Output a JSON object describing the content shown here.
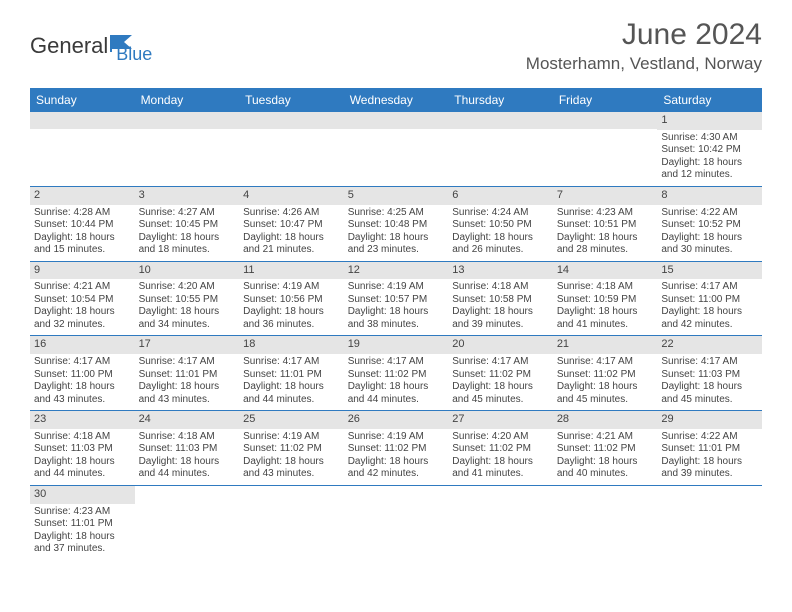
{
  "logo": {
    "text1": "General",
    "text2": "Blue"
  },
  "title": "June 2024",
  "location": "Mosterhamn, Vestland, Norway",
  "colors": {
    "accent": "#2f7ac0",
    "dayNumBg": "#e5e5e5",
    "text": "#444444"
  },
  "dayHeaders": [
    "Sunday",
    "Monday",
    "Tuesday",
    "Wednesday",
    "Thursday",
    "Friday",
    "Saturday"
  ],
  "weeks": [
    [
      null,
      null,
      null,
      null,
      null,
      null,
      {
        "n": "1",
        "sr": "Sunrise: 4:30 AM",
        "ss": "Sunset: 10:42 PM",
        "dl1": "Daylight: 18 hours",
        "dl2": "and 12 minutes."
      }
    ],
    [
      {
        "n": "2",
        "sr": "Sunrise: 4:28 AM",
        "ss": "Sunset: 10:44 PM",
        "dl1": "Daylight: 18 hours",
        "dl2": "and 15 minutes."
      },
      {
        "n": "3",
        "sr": "Sunrise: 4:27 AM",
        "ss": "Sunset: 10:45 PM",
        "dl1": "Daylight: 18 hours",
        "dl2": "and 18 minutes."
      },
      {
        "n": "4",
        "sr": "Sunrise: 4:26 AM",
        "ss": "Sunset: 10:47 PM",
        "dl1": "Daylight: 18 hours",
        "dl2": "and 21 minutes."
      },
      {
        "n": "5",
        "sr": "Sunrise: 4:25 AM",
        "ss": "Sunset: 10:48 PM",
        "dl1": "Daylight: 18 hours",
        "dl2": "and 23 minutes."
      },
      {
        "n": "6",
        "sr": "Sunrise: 4:24 AM",
        "ss": "Sunset: 10:50 PM",
        "dl1": "Daylight: 18 hours",
        "dl2": "and 26 minutes."
      },
      {
        "n": "7",
        "sr": "Sunrise: 4:23 AM",
        "ss": "Sunset: 10:51 PM",
        "dl1": "Daylight: 18 hours",
        "dl2": "and 28 minutes."
      },
      {
        "n": "8",
        "sr": "Sunrise: 4:22 AM",
        "ss": "Sunset: 10:52 PM",
        "dl1": "Daylight: 18 hours",
        "dl2": "and 30 minutes."
      }
    ],
    [
      {
        "n": "9",
        "sr": "Sunrise: 4:21 AM",
        "ss": "Sunset: 10:54 PM",
        "dl1": "Daylight: 18 hours",
        "dl2": "and 32 minutes."
      },
      {
        "n": "10",
        "sr": "Sunrise: 4:20 AM",
        "ss": "Sunset: 10:55 PM",
        "dl1": "Daylight: 18 hours",
        "dl2": "and 34 minutes."
      },
      {
        "n": "11",
        "sr": "Sunrise: 4:19 AM",
        "ss": "Sunset: 10:56 PM",
        "dl1": "Daylight: 18 hours",
        "dl2": "and 36 minutes."
      },
      {
        "n": "12",
        "sr": "Sunrise: 4:19 AM",
        "ss": "Sunset: 10:57 PM",
        "dl1": "Daylight: 18 hours",
        "dl2": "and 38 minutes."
      },
      {
        "n": "13",
        "sr": "Sunrise: 4:18 AM",
        "ss": "Sunset: 10:58 PM",
        "dl1": "Daylight: 18 hours",
        "dl2": "and 39 minutes."
      },
      {
        "n": "14",
        "sr": "Sunrise: 4:18 AM",
        "ss": "Sunset: 10:59 PM",
        "dl1": "Daylight: 18 hours",
        "dl2": "and 41 minutes."
      },
      {
        "n": "15",
        "sr": "Sunrise: 4:17 AM",
        "ss": "Sunset: 11:00 PM",
        "dl1": "Daylight: 18 hours",
        "dl2": "and 42 minutes."
      }
    ],
    [
      {
        "n": "16",
        "sr": "Sunrise: 4:17 AM",
        "ss": "Sunset: 11:00 PM",
        "dl1": "Daylight: 18 hours",
        "dl2": "and 43 minutes."
      },
      {
        "n": "17",
        "sr": "Sunrise: 4:17 AM",
        "ss": "Sunset: 11:01 PM",
        "dl1": "Daylight: 18 hours",
        "dl2": "and 43 minutes."
      },
      {
        "n": "18",
        "sr": "Sunrise: 4:17 AM",
        "ss": "Sunset: 11:01 PM",
        "dl1": "Daylight: 18 hours",
        "dl2": "and 44 minutes."
      },
      {
        "n": "19",
        "sr": "Sunrise: 4:17 AM",
        "ss": "Sunset: 11:02 PM",
        "dl1": "Daylight: 18 hours",
        "dl2": "and 44 minutes."
      },
      {
        "n": "20",
        "sr": "Sunrise: 4:17 AM",
        "ss": "Sunset: 11:02 PM",
        "dl1": "Daylight: 18 hours",
        "dl2": "and 45 minutes."
      },
      {
        "n": "21",
        "sr": "Sunrise: 4:17 AM",
        "ss": "Sunset: 11:02 PM",
        "dl1": "Daylight: 18 hours",
        "dl2": "and 45 minutes."
      },
      {
        "n": "22",
        "sr": "Sunrise: 4:17 AM",
        "ss": "Sunset: 11:03 PM",
        "dl1": "Daylight: 18 hours",
        "dl2": "and 45 minutes."
      }
    ],
    [
      {
        "n": "23",
        "sr": "Sunrise: 4:18 AM",
        "ss": "Sunset: 11:03 PM",
        "dl1": "Daylight: 18 hours",
        "dl2": "and 44 minutes."
      },
      {
        "n": "24",
        "sr": "Sunrise: 4:18 AM",
        "ss": "Sunset: 11:03 PM",
        "dl1": "Daylight: 18 hours",
        "dl2": "and 44 minutes."
      },
      {
        "n": "25",
        "sr": "Sunrise: 4:19 AM",
        "ss": "Sunset: 11:02 PM",
        "dl1": "Daylight: 18 hours",
        "dl2": "and 43 minutes."
      },
      {
        "n": "26",
        "sr": "Sunrise: 4:19 AM",
        "ss": "Sunset: 11:02 PM",
        "dl1": "Daylight: 18 hours",
        "dl2": "and 42 minutes."
      },
      {
        "n": "27",
        "sr": "Sunrise: 4:20 AM",
        "ss": "Sunset: 11:02 PM",
        "dl1": "Daylight: 18 hours",
        "dl2": "and 41 minutes."
      },
      {
        "n": "28",
        "sr": "Sunrise: 4:21 AM",
        "ss": "Sunset: 11:02 PM",
        "dl1": "Daylight: 18 hours",
        "dl2": "and 40 minutes."
      },
      {
        "n": "29",
        "sr": "Sunrise: 4:22 AM",
        "ss": "Sunset: 11:01 PM",
        "dl1": "Daylight: 18 hours",
        "dl2": "and 39 minutes."
      }
    ],
    [
      {
        "n": "30",
        "sr": "Sunrise: 4:23 AM",
        "ss": "Sunset: 11:01 PM",
        "dl1": "Daylight: 18 hours",
        "dl2": "and 37 minutes."
      },
      null,
      null,
      null,
      null,
      null,
      null
    ]
  ]
}
